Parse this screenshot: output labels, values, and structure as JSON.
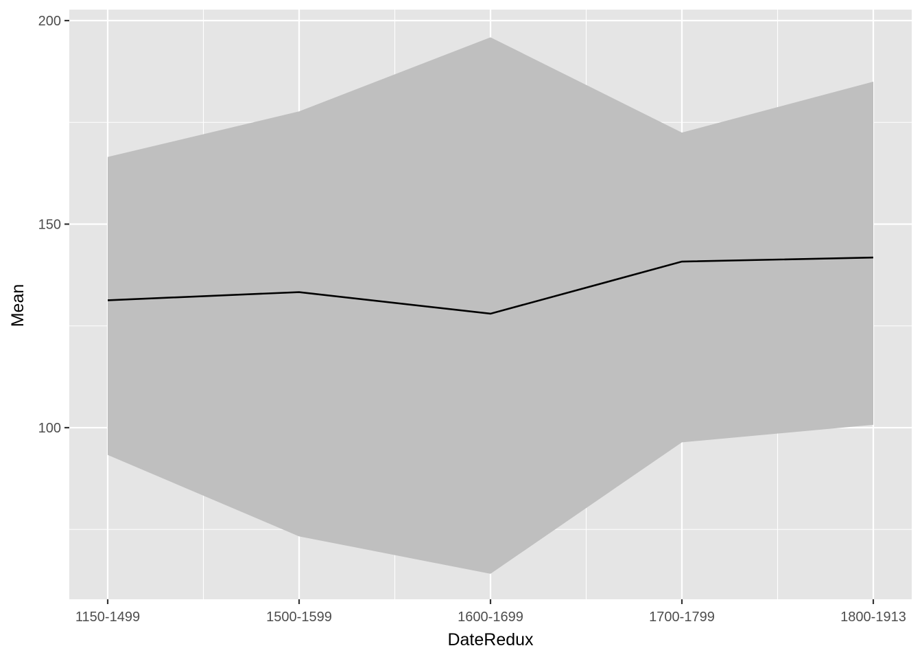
{
  "chart_data": {
    "type": "line",
    "title": "",
    "xlabel": "DateRedux",
    "ylabel": "Mean",
    "categories": [
      "1150-1499",
      "1500-1599",
      "1600-1699",
      "1700-1799",
      "1800-1913"
    ],
    "series": [
      {
        "values": [
          131.3,
          133.3,
          128.0,
          140.8,
          141.8
        ],
        "lower": [
          93.3,
          73.3,
          64.1,
          96.4,
          100.7
        ],
        "upper": [
          166.5,
          177.7,
          195.9,
          172.5,
          185.0
        ]
      }
    ],
    "ylim": [
      58,
      202.5
    ],
    "yticks": [
      100,
      150,
      200
    ],
    "grid": true,
    "legend": "none",
    "colors": {
      "panel": "#e5e5e5",
      "grid": "#ffffff",
      "ribbon": "#bfbfbf",
      "line": "#000000",
      "tick_text": "#4d4d4d",
      "tick_mark": "#333333"
    }
  }
}
